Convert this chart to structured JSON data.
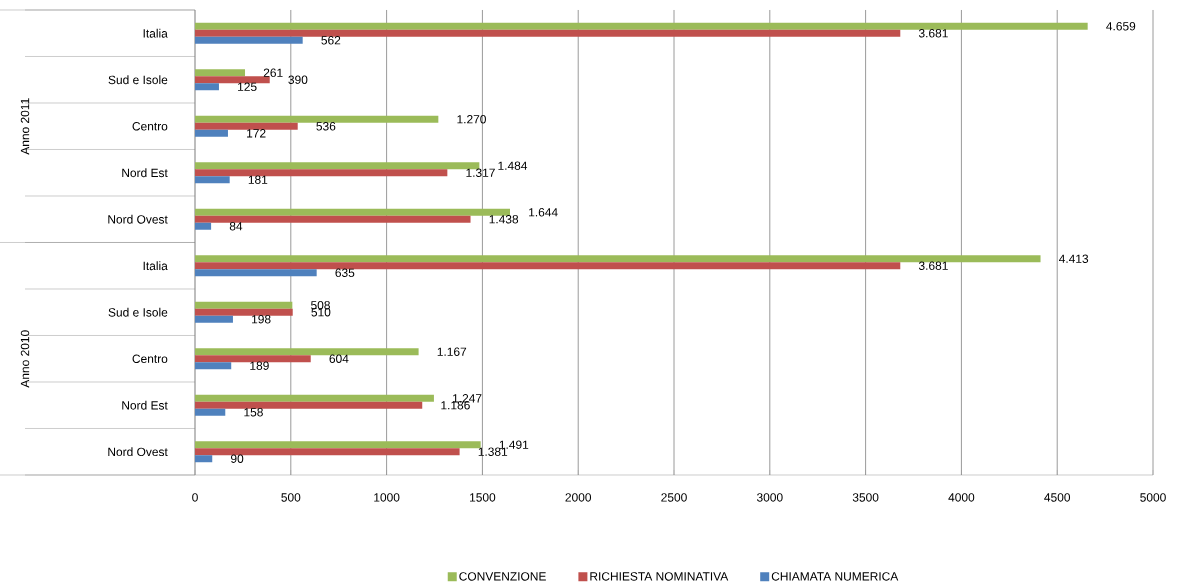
{
  "chart_data": {
    "type": "bar",
    "orientation": "horizontal",
    "categories": [
      "Italia",
      "Sud e Isole",
      "Centro",
      "Nord Est",
      "Nord Ovest",
      "Italia",
      "Sud e Isole",
      "Centro",
      "Nord Est",
      "Nord Ovest"
    ],
    "series": [
      {
        "name": "CONVENZIONE",
        "color": "#9bbb59",
        "values": [
          4659,
          261,
          1270,
          1484,
          1644,
          4413,
          508,
          1167,
          1247,
          1491
        ],
        "value_labels": [
          "4.659",
          "261",
          "1.270",
          "1.484",
          "1.644",
          "4.413",
          "508",
          "1.167",
          "1.247",
          "1.491"
        ]
      },
      {
        "name": "RICHIESTA NOMINATIVA",
        "color": "#c0504d",
        "values": [
          3681,
          390,
          536,
          1317,
          1438,
          3681,
          510,
          604,
          1186,
          1381
        ],
        "value_labels": [
          "3.681",
          "390",
          "536",
          "1.317",
          "1.438",
          "3.681",
          "510",
          "604",
          "1.186",
          "1.381"
        ]
      },
      {
        "name": "CHIAMATA NUMERICA",
        "color": "#4f81bd",
        "values": [
          562,
          125,
          172,
          181,
          84,
          635,
          198,
          189,
          158,
          90
        ],
        "value_labels": [
          "562",
          "125",
          "172",
          "181",
          "84",
          "635",
          "198",
          "189",
          "158",
          "90"
        ]
      }
    ],
    "annotations": [
      "Anno 2011",
      "Anno 2010"
    ],
    "xlim": [
      0,
      5000
    ],
    "xticks": [
      0,
      500,
      1000,
      1500,
      2000,
      2500,
      3000,
      3500,
      4000,
      4500,
      5000
    ],
    "grid": "x",
    "legend": "bottom"
  }
}
